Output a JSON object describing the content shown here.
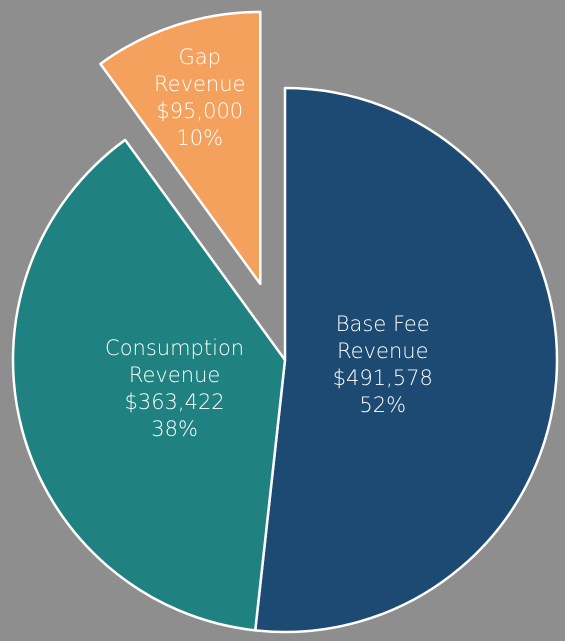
{
  "chart_data": {
    "type": "pie",
    "categories": [
      "Base Fee Revenue",
      "Consumption Revenue",
      "Gap Revenue"
    ],
    "values": [
      491578,
      363422,
      95000
    ],
    "value_labels": [
      "$491,578",
      "$363,422",
      "$95,000"
    ],
    "percents": [
      52,
      38,
      10
    ],
    "percent_labels": [
      "52%",
      "38%",
      "10%"
    ],
    "colors": [
      "#1c4a72",
      "#1f8281",
      "#f5a15e"
    ],
    "exploded": [
      false,
      false,
      true
    ]
  }
}
